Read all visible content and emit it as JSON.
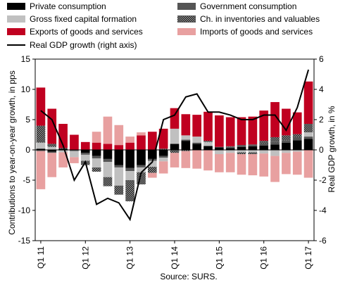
{
  "chart_data": {
    "type": "bar",
    "stacked": true,
    "source_note": "Source: SURS.",
    "ylabel_left": "Contributions to year-on-year growth, in pps",
    "ylabel_right": "Real GDP growth, in %",
    "ylim_left": [
      -15,
      15
    ],
    "ylim_right": [
      -6,
      6
    ],
    "yticks_left": [
      15,
      10,
      5,
      0,
      -5,
      -10,
      -15
    ],
    "yticks_right": [
      6,
      4,
      2,
      0,
      -2,
      -4,
      -6
    ],
    "legend_placement": "top",
    "x_ticks": [
      {
        "label": "Q1 11",
        "index": 0
      },
      {
        "label": "Q1 12",
        "index": 4
      },
      {
        "label": "Q1 13",
        "index": 8
      },
      {
        "label": "Q1 14",
        "index": 12
      },
      {
        "label": "Q1 15",
        "index": 16
      },
      {
        "label": "Q1 16",
        "index": 20
      },
      {
        "label": "Q1 17",
        "index": 24
      }
    ],
    "categories": [
      "Q1 11",
      "Q2 11",
      "Q3 11",
      "Q4 11",
      "Q1 12",
      "Q2 12",
      "Q3 12",
      "Q4 12",
      "Q1 13",
      "Q2 13",
      "Q3 13",
      "Q4 13",
      "Q1 14",
      "Q2 14",
      "Q3 14",
      "Q4 14",
      "Q1 15",
      "Q2 15",
      "Q3 15",
      "Q4 15",
      "Q1 16",
      "Q2 16",
      "Q3 16",
      "Q4 16",
      "Q1 17"
    ],
    "series": [
      {
        "name": "Private consumption",
        "color": "#000000",
        "pattern": "solid",
        "values": [
          0.2,
          -0.3,
          0.2,
          0.0,
          -0.5,
          -1.0,
          -1.5,
          -2.5,
          -3.0,
          -2.5,
          -1.5,
          -1.0,
          1.0,
          1.5,
          1.0,
          0.6,
          0.4,
          0.3,
          0.5,
          0.6,
          0.7,
          0.9,
          1.2,
          1.6,
          1.8
        ]
      },
      {
        "name": "Government consumption",
        "color": "#555555",
        "pattern": "solid",
        "values": [
          -0.2,
          -0.2,
          -0.1,
          -0.2,
          -0.3,
          -0.4,
          -0.5,
          -0.4,
          -0.5,
          -0.4,
          -0.3,
          -0.3,
          -0.1,
          0.2,
          0.2,
          0.1,
          0.1,
          0.2,
          0.3,
          0.3,
          0.4,
          0.4,
          0.4,
          0.5,
          0.4
        ]
      },
      {
        "name": "Gross fixed capital formation",
        "color": "#c0c0c0",
        "pattern": "solid",
        "values": [
          1.0,
          0.5,
          -0.3,
          -1.0,
          -1.0,
          -1.5,
          -2.5,
          -3.0,
          -1.5,
          -0.8,
          -1.0,
          -0.6,
          2.5,
          0.7,
          1.0,
          0.6,
          -0.7,
          -0.5,
          -0.4,
          -0.4,
          -0.6,
          -1.0,
          -0.5,
          -0.3,
          0.7
        ]
      },
      {
        "name": "Ch. in inventories and valuables",
        "color": "#777777",
        "pattern": "checker",
        "values": [
          2.8,
          0.5,
          0.1,
          0.0,
          -0.7,
          -0.7,
          -1.5,
          -1.5,
          -3.5,
          -2.0,
          -1.0,
          0.2,
          -0.4,
          -0.2,
          0.0,
          0.2,
          0.0,
          0.1,
          -0.3,
          -0.3,
          0.4,
          0.8,
          0.8,
          0.5,
          1.4
        ]
      },
      {
        "name": "Exports of goods and services",
        "color": "#c00020",
        "pattern": "solid",
        "values": [
          6.3,
          5.8,
          4.0,
          2.5,
          1.3,
          1.2,
          1.0,
          0.8,
          1.2,
          2.4,
          3.0,
          3.3,
          3.4,
          3.5,
          3.6,
          4.8,
          5.2,
          4.8,
          4.6,
          4.6,
          5.0,
          5.8,
          4.4,
          3.6,
          7.0
        ]
      },
      {
        "name": "Imports of goods and services",
        "color": "#e8a0a0",
        "pattern": "solid",
        "values": [
          -6.3,
          -4.0,
          -2.5,
          -1.0,
          0.0,
          1.8,
          4.5,
          3.3,
          1.0,
          0.5,
          -0.8,
          -2.0,
          -2.4,
          -2.8,
          -3.1,
          -3.4,
          -3.0,
          -3.2,
          -3.4,
          -3.5,
          -3.8,
          -4.3,
          -3.5,
          -3.8,
          -4.6
        ]
      }
    ],
    "line_series": {
      "name": "Real GDP growth (right axis)",
      "axis": "right",
      "color": "#000000",
      "values": [
        2.6,
        2.0,
        0.3,
        -2.0,
        -0.8,
        -3.6,
        -3.2,
        -3.5,
        -4.6,
        -1.5,
        -0.8,
        2.0,
        2.3,
        3.5,
        3.7,
        2.5,
        2.5,
        2.3,
        2.0,
        2.0,
        2.3,
        2.3,
        1.3,
        2.8,
        5.3
      ]
    }
  }
}
